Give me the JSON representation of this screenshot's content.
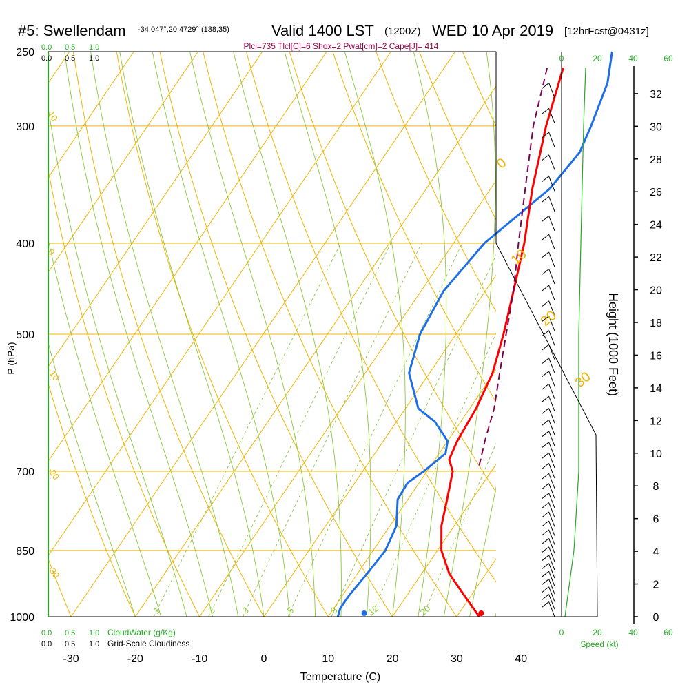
{
  "header": {
    "station": "#5: Swellendam",
    "coords": "-34.047°,20.4729° (138,35)",
    "valid": "Valid 1400 LST",
    "zulu": "(1200Z)",
    "date": "WED 10 Apr 2019",
    "forecast": "[12hrFcst@0431z]",
    "indices": "Plcl=735 Tlcl[C]=6 Shox=2 Pwat[cm]=2 Cape[J]= 414"
  },
  "colors": {
    "temperature": "#ff0000",
    "dewpoint": "#1e6ee6",
    "parcel": "#800050",
    "isotherm_grid": "#f0b400",
    "dry_adiabat": "#f0b400",
    "moist_adiabat": "#8cc83c",
    "mixing_ratio": "#8cc83c",
    "green_label": "#22aa22",
    "index_text": "#a0004a"
  },
  "labels": {
    "cloudwater_green": [
      "0.0",
      "0.5",
      "1.0"
    ],
    "cloudwater_black": [
      "0.0",
      "0.5",
      "1.0"
    ],
    "cloudwater_title": "CloudWater (g/Kg)",
    "cloudiness_title": "Grid-Scale Cloudiness",
    "speed_label": "Speed (kt)",
    "speed_ticks": [
      "0",
      "20",
      "40",
      "60"
    ],
    "mixing_ratio_labels": [
      "1",
      "2",
      "3",
      "5",
      "8",
      "12",
      "20"
    ],
    "dry_adiabat_labels": [
      "10",
      "0",
      "-10",
      "-20",
      "-30"
    ],
    "moist_adiabat_labels": [
      "0",
      "10",
      "20",
      "30"
    ]
  },
  "chart_data": {
    "type": "line",
    "xlabel": "Temperature (C)",
    "ylabel": "P (hPa)",
    "y2label": "Height (1000 Feet)",
    "x_ticks": [
      -30,
      -20,
      -10,
      0,
      10,
      20,
      30,
      40
    ],
    "p_ticks": [
      250,
      300,
      400,
      500,
      700,
      850,
      1000
    ],
    "height_ticks": [
      0,
      2,
      4,
      6,
      8,
      10,
      12,
      14,
      16,
      18,
      20,
      22,
      24,
      26,
      28,
      30,
      32
    ],
    "temperature": [
      [
        1000,
        33.5
      ],
      [
        950,
        29
      ],
      [
        900,
        24.3
      ],
      [
        850,
        20.6
      ],
      [
        800,
        18
      ],
      [
        750,
        16.1
      ],
      [
        700,
        14
      ],
      [
        680,
        12.2
      ],
      [
        650,
        11.5
      ],
      [
        600,
        11
      ],
      [
        550,
        9.8
      ],
      [
        500,
        7.4
      ],
      [
        450,
        4.4
      ],
      [
        400,
        1
      ],
      [
        350,
        -3.5
      ],
      [
        300,
        -8
      ],
      [
        260,
        -11.5
      ]
    ],
    "dewpoint": [
      [
        1000,
        11.5
      ],
      [
        980,
        11
      ],
      [
        950,
        11
      ],
      [
        900,
        11.5
      ],
      [
        850,
        11.9
      ],
      [
        800,
        11
      ],
      [
        750,
        8.4
      ],
      [
        720,
        8.2
      ],
      [
        700,
        9.5
      ],
      [
        670,
        11
      ],
      [
        650,
        10
      ],
      [
        620,
        6
      ],
      [
        600,
        2
      ],
      [
        550,
        -3.2
      ],
      [
        500,
        -5.6
      ],
      [
        450,
        -6.5
      ],
      [
        400,
        -5.2
      ],
      [
        350,
        -0.8
      ],
      [
        320,
        0
      ],
      [
        300,
        -1
      ],
      [
        270,
        -3
      ],
      [
        250,
        -5.6
      ]
    ],
    "parcel": [
      [
        690,
        17.5
      ],
      [
        650,
        15.8
      ],
      [
        600,
        13.8
      ],
      [
        550,
        10.9
      ],
      [
        500,
        7.8
      ],
      [
        450,
        4.4
      ],
      [
        400,
        0.1
      ],
      [
        350,
        -4.6
      ],
      [
        300,
        -10
      ],
      [
        260,
        -14
      ]
    ],
    "surface_temperature": 33.8,
    "surface_dewpoint": 15.6,
    "wind_speed_profile": [
      [
        1000,
        0.5
      ],
      [
        850,
        1.8
      ],
      [
        700,
        2.5
      ],
      [
        500,
        2.5
      ],
      [
        400,
        2.8
      ],
      [
        300,
        3.2
      ],
      [
        260,
        3.5
      ]
    ]
  }
}
